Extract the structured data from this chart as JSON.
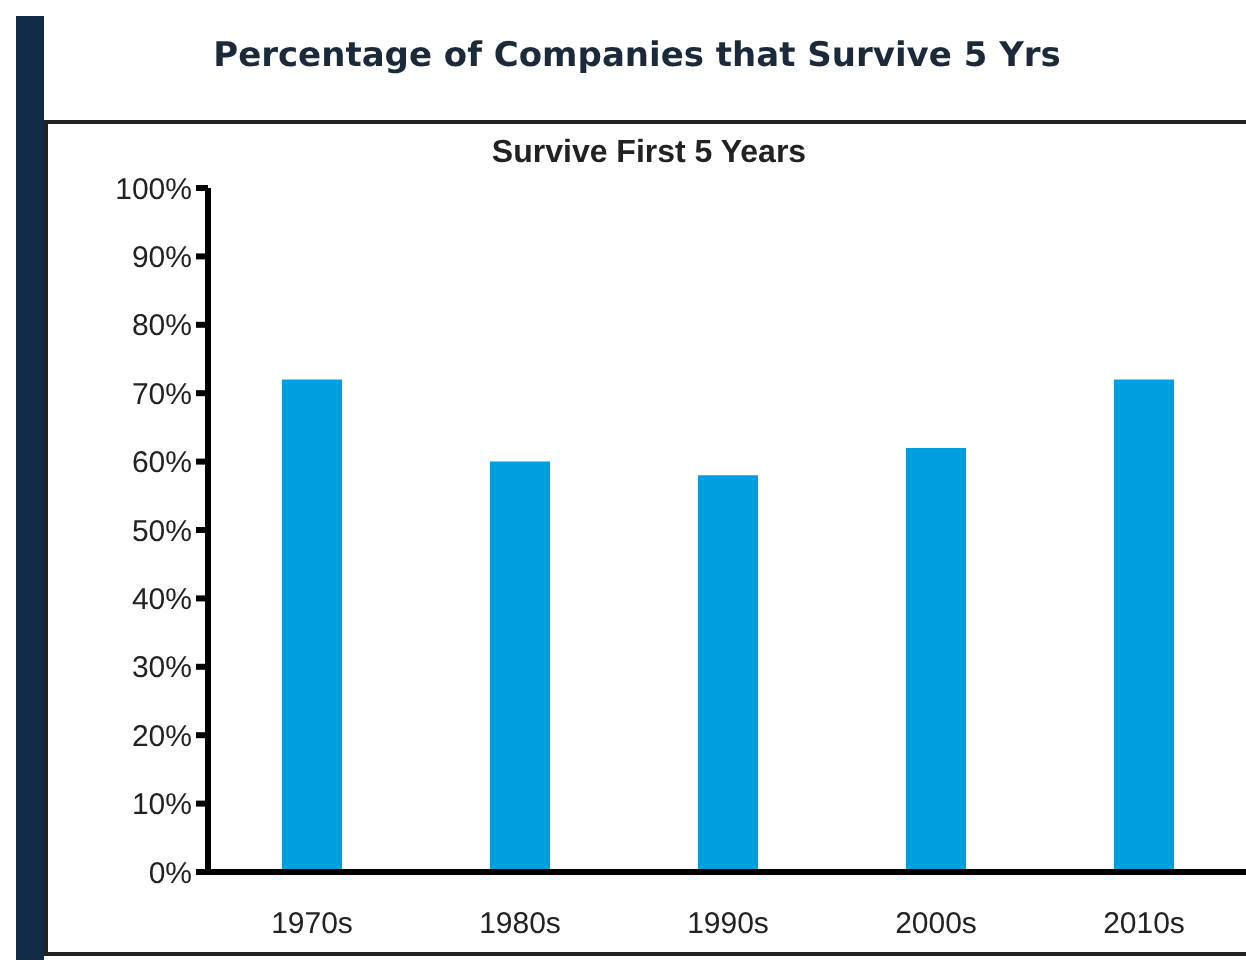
{
  "chart_data": {
    "type": "bar",
    "title": "Percentage of Companies that Survive 5 Yrs",
    "subtitle": "Survive First 5 Years",
    "categories": [
      "1970s",
      "1980s",
      "1990s",
      "2000s",
      "2010s"
    ],
    "values": [
      72,
      60,
      58,
      62,
      72
    ],
    "color": "#009fdf",
    "ylim": [
      0,
      100
    ],
    "yticks": [
      {
        "value": 0,
        "label": "0%"
      },
      {
        "value": 10,
        "label": "10%"
      },
      {
        "value": 20,
        "label": "20%"
      },
      {
        "value": 30,
        "label": "30%"
      },
      {
        "value": 40,
        "label": "40%"
      },
      {
        "value": 50,
        "label": "50%"
      },
      {
        "value": 60,
        "label": "60%"
      },
      {
        "value": 70,
        "label": "70%"
      },
      {
        "value": 80,
        "label": "80%"
      },
      {
        "value": 90,
        "label": "90%"
      },
      {
        "value": 100,
        "label": "100%"
      }
    ],
    "grid": false,
    "legend": false
  }
}
